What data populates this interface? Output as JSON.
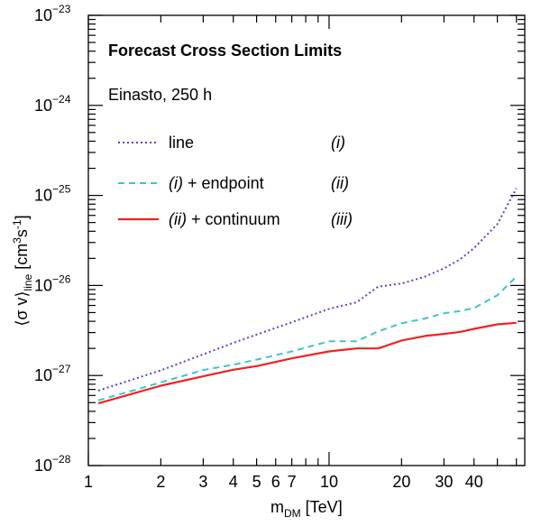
{
  "chart_data": {
    "type": "line",
    "title": "Forecast Cross Section Limits",
    "subtitle": "Einasto, 250 h",
    "xlabel": {
      "main": "m",
      "sub": "DM",
      "unit": " [TeV]"
    },
    "ylabel": {
      "open": "⟨σ v⟩",
      "sub": "line",
      "unit_pre": " [cm",
      "unit_exp1": "3",
      "unit_mid": "s",
      "unit_exp2": "-1",
      "unit_post": "]"
    },
    "x_scale": "log",
    "y_scale": "log",
    "xlim": [
      1,
      65
    ],
    "ylim": [
      1e-28,
      1e-23
    ],
    "grid": false,
    "x_ticks": [
      {
        "value": 1,
        "label": "1"
      },
      {
        "value": 2,
        "label": "2"
      },
      {
        "value": 3,
        "label": "3"
      },
      {
        "value": 4,
        "label": "4"
      },
      {
        "value": 5,
        "label": "5"
      },
      {
        "value": 6,
        "label": "6"
      },
      {
        "value": 7,
        "label": "7"
      },
      {
        "value": 10,
        "label": "10"
      },
      {
        "value": 20,
        "label": "20"
      },
      {
        "value": 30,
        "label": "30"
      },
      {
        "value": 40,
        "label": "40"
      }
    ],
    "y_ticks": [
      {
        "value": -28,
        "base": "10",
        "exp": "−28"
      },
      {
        "value": -27,
        "base": "10",
        "exp": "−27"
      },
      {
        "value": -26,
        "base": "10",
        "exp": "−26"
      },
      {
        "value": -25,
        "base": "10",
        "exp": "−25"
      },
      {
        "value": -24,
        "base": "10",
        "exp": "−24"
      },
      {
        "value": -23,
        "base": "10",
        "exp": "−23"
      }
    ],
    "legend_position": "top-left",
    "series": [
      {
        "name": "line",
        "tag": "(i)",
        "color": "#4a4ac8",
        "style": "dotted",
        "x": [
          1.1,
          1.5,
          2,
          3,
          4,
          5,
          7,
          10,
          13,
          16,
          20,
          25,
          30,
          35,
          40,
          50,
          60
        ],
        "y": [
          6.8e-28,
          8.9e-28,
          1.14e-27,
          1.72e-27,
          2.3e-27,
          2.85e-27,
          3.9e-27,
          5.5e-27,
          6.5e-27,
          9.7e-27,
          1.05e-26,
          1.25e-26,
          1.55e-26,
          1.95e-26,
          2.6e-26,
          4.8e-26,
          1.2e-25
        ]
      },
      {
        "name": "(i) + endpoint",
        "label_parts": [
          "(i)",
          " + endpoint"
        ],
        "tag": "(ii)",
        "color": "#3fc4c8",
        "style": "dashed",
        "x": [
          1.1,
          1.5,
          2,
          3,
          4,
          5,
          7,
          10,
          13,
          16,
          20,
          25,
          30,
          35,
          40,
          50,
          60
        ],
        "y": [
          5.3e-28,
          6.7e-28,
          8.4e-28,
          1.15e-27,
          1.32e-27,
          1.5e-27,
          1.85e-27,
          2.4e-27,
          2.4e-27,
          3.1e-27,
          3.8e-27,
          4.3e-27,
          4.9e-27,
          5.2e-27,
          5.6e-27,
          7.8e-27,
          1.25e-26
        ]
      },
      {
        "name": "(ii) + continuum",
        "label_parts": [
          "(ii)",
          " + continuum"
        ],
        "tag": "(iii)",
        "color": "#ee2222",
        "style": "solid",
        "x": [
          1.1,
          1.5,
          2,
          3,
          4,
          5,
          7,
          10,
          13,
          16,
          20,
          25,
          30,
          35,
          40,
          50,
          60
        ],
        "y": [
          4.9e-28,
          6.2e-28,
          7.7e-28,
          9.8e-28,
          1.16e-27,
          1.27e-27,
          1.55e-27,
          1.85e-27,
          2e-27,
          2e-27,
          2.45e-27,
          2.75e-27,
          2.9e-27,
          3.05e-27,
          3.3e-27,
          3.7e-27,
          3.85e-27
        ]
      }
    ]
  }
}
